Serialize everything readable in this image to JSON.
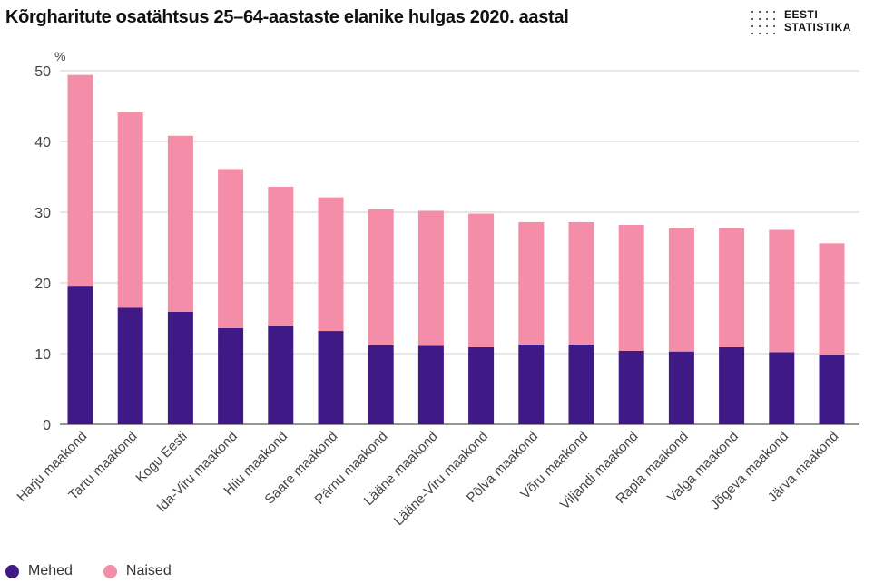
{
  "title": "Kõrgharitute osatähtsus 25–64-aastaste elanike hulgas 2020. aastal",
  "logo": {
    "line1": "EESTI",
    "line2": "STATISTIKA",
    "icon": "dot-grid-icon"
  },
  "colors": {
    "mehed": "#3f1a86",
    "naised": "#f48ea8",
    "grid": "#cfcfcf",
    "axis": "#555555"
  },
  "chart_data": {
    "type": "bar",
    "stacked": true,
    "title": "Kõrgharitute osatähtsus 25–64-aastaste elanike hulgas 2020. aastal",
    "ylabel": "%",
    "ylim": [
      0,
      50
    ],
    "yticks": [
      0,
      10,
      20,
      30,
      40,
      50
    ],
    "grid": true,
    "legend_position": "bottom-left",
    "categories": [
      "Harju maakond",
      "Tartu maakond",
      "Kogu Eesti",
      "Ida-Viru maakond",
      "Hiiu  maakond",
      "Saare maakond",
      "Pärnu  maakond",
      "Lääne maakond",
      "Lääne-Viru maakond",
      "Põlva maakond",
      "Võru maakond",
      "Viljandi maakond",
      "Rapla maakond",
      "Valga maakond",
      "Jõgeva maakond",
      "Järva maakond"
    ],
    "series": [
      {
        "name": "Mehed",
        "values": [
          19.6,
          16.5,
          15.9,
          13.6,
          14.0,
          13.2,
          11.2,
          11.1,
          10.9,
          11.3,
          11.3,
          10.4,
          10.3,
          10.9,
          10.2,
          9.9
        ]
      },
      {
        "name": "Naised",
        "values": [
          29.8,
          27.6,
          24.9,
          22.5,
          19.6,
          18.9,
          19.2,
          19.1,
          18.9,
          17.3,
          17.3,
          17.8,
          17.5,
          16.8,
          17.3,
          15.7
        ]
      }
    ]
  }
}
